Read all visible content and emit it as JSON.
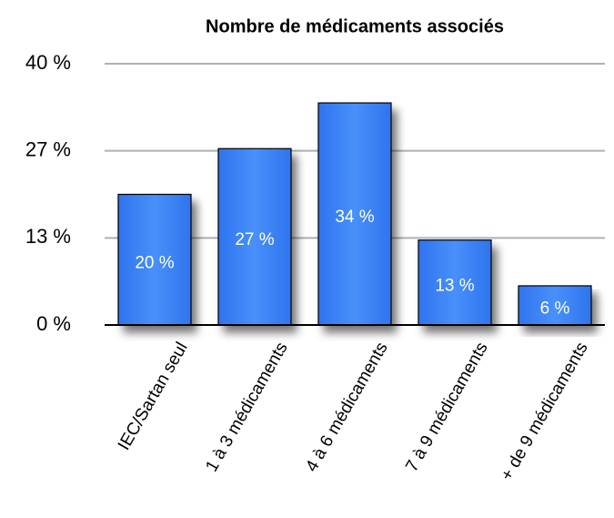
{
  "chart_data": {
    "type": "bar",
    "title": "Nombre de médicaments associés",
    "categories": [
      "IEC/Sartan seul",
      "1 à 3 médicaments",
      "4 à 6 médicaments",
      "7 à 9 médicaments",
      "+ de 9 médicaments"
    ],
    "values": [
      20,
      27,
      34,
      13,
      6
    ],
    "value_labels": [
      "20 %",
      "27 %",
      "34 %",
      "13 %",
      "6 %"
    ],
    "color": "#3a83f6",
    "ylim": [
      0,
      40
    ],
    "yticks": [
      {
        "value": 0,
        "label": "0 %"
      },
      {
        "value": 13.33,
        "label": "13 %"
      },
      {
        "value": 26.67,
        "label": "27 %"
      },
      {
        "value": 40,
        "label": "40 %"
      }
    ],
    "grid": true
  }
}
